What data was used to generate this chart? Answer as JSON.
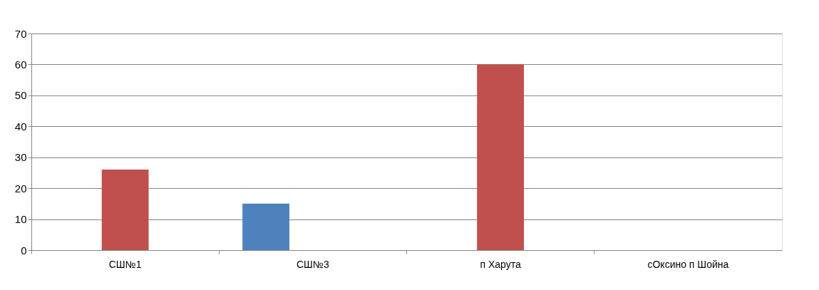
{
  "chart_data": {
    "type": "bar",
    "categories": [
      "СШ№1",
      "СШ№3",
      "п Харута",
      "сОксино п Шойна"
    ],
    "series": [
      {
        "color": "#4f81bd",
        "values": [
          null,
          15,
          null,
          null
        ]
      },
      {
        "color": "#c0504d",
        "values": [
          26,
          null,
          60,
          null
        ]
      }
    ],
    "ylim": [
      0,
      70
    ],
    "yticks": [
      0,
      10,
      20,
      30,
      40,
      50,
      60,
      70
    ],
    "grid": "y",
    "legend": false
  }
}
